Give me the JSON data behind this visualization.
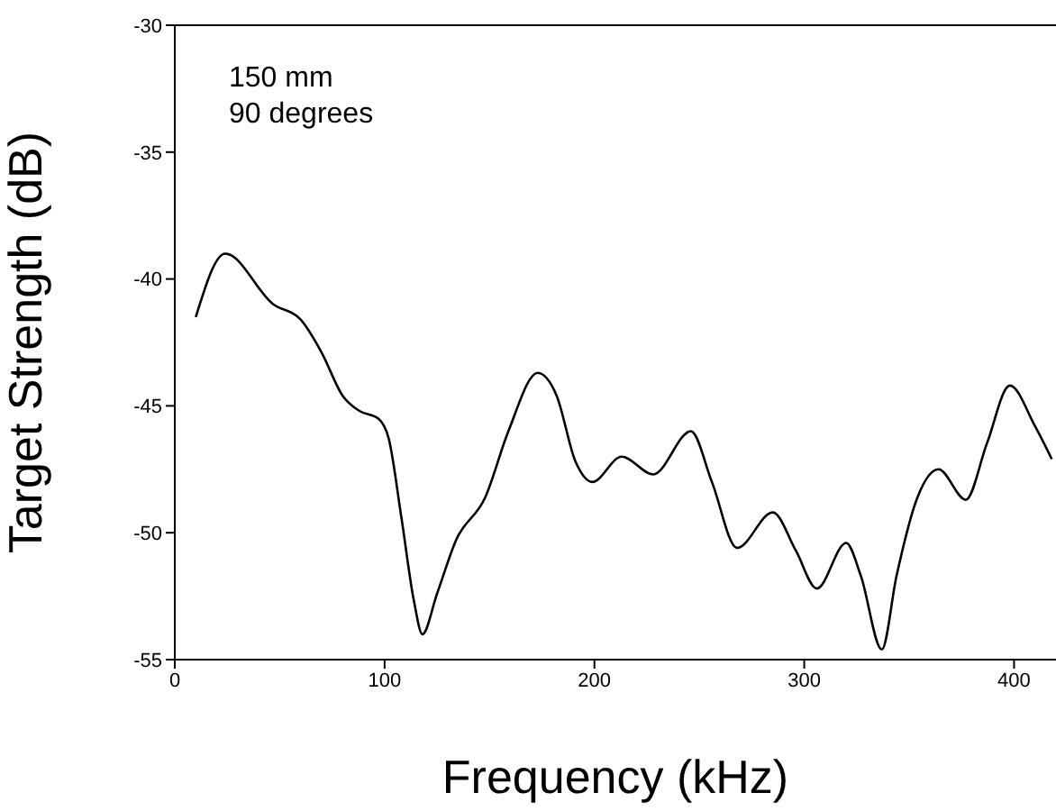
{
  "chart_data": {
    "type": "line",
    "xlabel": "Frequency (kHz)",
    "ylabel": "Target Strength (dB)",
    "annotations": [
      "150 mm",
      "90 degrees"
    ],
    "xlim": [
      0,
      420
    ],
    "xticks": [
      0,
      100,
      200,
      300,
      400
    ],
    "ylim": [
      -55,
      -30
    ],
    "yticks": [
      -55,
      -50,
      -45,
      -40,
      -35,
      -30
    ],
    "marker": "none",
    "line_style": "solid",
    "series": [
      {
        "color": "#000000",
        "x": [
          10,
          24,
          47,
          60,
          70,
          80,
          88,
          97,
          102,
          108,
          114,
          118,
          125,
          134,
          148,
          159,
          173,
          182,
          191,
          199,
          213,
          228,
          246,
          256,
          268,
          285,
          296,
          306,
          320,
          327,
          337,
          344,
          354,
          364,
          377,
          387,
          398,
          410,
          418
        ],
        "values": [
          -41.5,
          -39.0,
          -41.0,
          -41.6,
          -42.9,
          -44.6,
          -45.2,
          -45.5,
          -46.3,
          -49.4,
          -52.7,
          -54.0,
          -52.4,
          -50.3,
          -48.6,
          -46.0,
          -43.7,
          -44.6,
          -47.2,
          -48.0,
          -47.0,
          -47.7,
          -46.0,
          -48.0,
          -50.6,
          -49.2,
          -50.7,
          -52.2,
          -50.4,
          -51.7,
          -54.6,
          -51.7,
          -48.6,
          -47.5,
          -48.7,
          -46.5,
          -44.2,
          -45.8,
          -47.1
        ]
      }
    ]
  }
}
